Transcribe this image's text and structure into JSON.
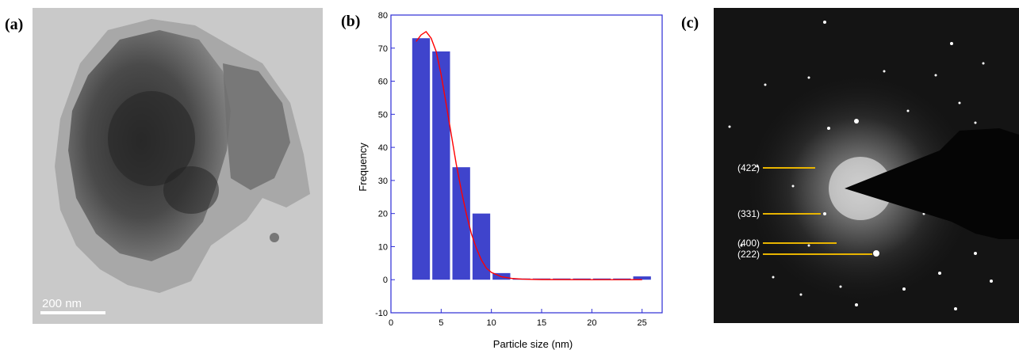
{
  "labels": {
    "a": "(a)",
    "b": "(b)",
    "c": "(c)"
  },
  "panel_a": {
    "scale_text": "200 nm"
  },
  "panel_c": {
    "rings": [
      "(422)",
      "(331)",
      "(400)",
      "(222)"
    ]
  },
  "colors": {
    "bar": "#3f44cc",
    "curve": "#ff0000",
    "axis": "#2b2bd6",
    "marker_line": "#e8b400"
  },
  "chart_data": {
    "type": "bar",
    "xlabel": "Particle size (nm)",
    "ylabel": "Frequency",
    "xlim": [
      0,
      27
    ],
    "ylim": [
      -10,
      80
    ],
    "xticks": [
      0,
      5,
      10,
      15,
      20,
      25
    ],
    "yticks": [
      -10,
      0,
      10,
      20,
      30,
      40,
      50,
      60,
      70,
      80
    ],
    "bin_width": 2,
    "x": [
      3,
      5,
      7,
      9,
      11,
      13,
      15,
      17,
      19,
      21,
      23,
      25
    ],
    "values": [
      73,
      69,
      34,
      20,
      2,
      0,
      0,
      0,
      0,
      0,
      0,
      1
    ],
    "fit_curve": {
      "x": [
        2.5,
        3,
        3.5,
        4,
        4.5,
        5,
        5.5,
        6,
        6.5,
        7,
        7.5,
        8,
        8.5,
        9,
        9.5,
        10,
        11,
        12,
        13,
        14,
        15,
        20,
        25
      ],
      "y": [
        72,
        74,
        75,
        73,
        69,
        62,
        53,
        44,
        35,
        27,
        20,
        14,
        9.5,
        6,
        3.5,
        2.2,
        0.9,
        0.4,
        0.2,
        0.1,
        0.05,
        0,
        0
      ]
    }
  }
}
